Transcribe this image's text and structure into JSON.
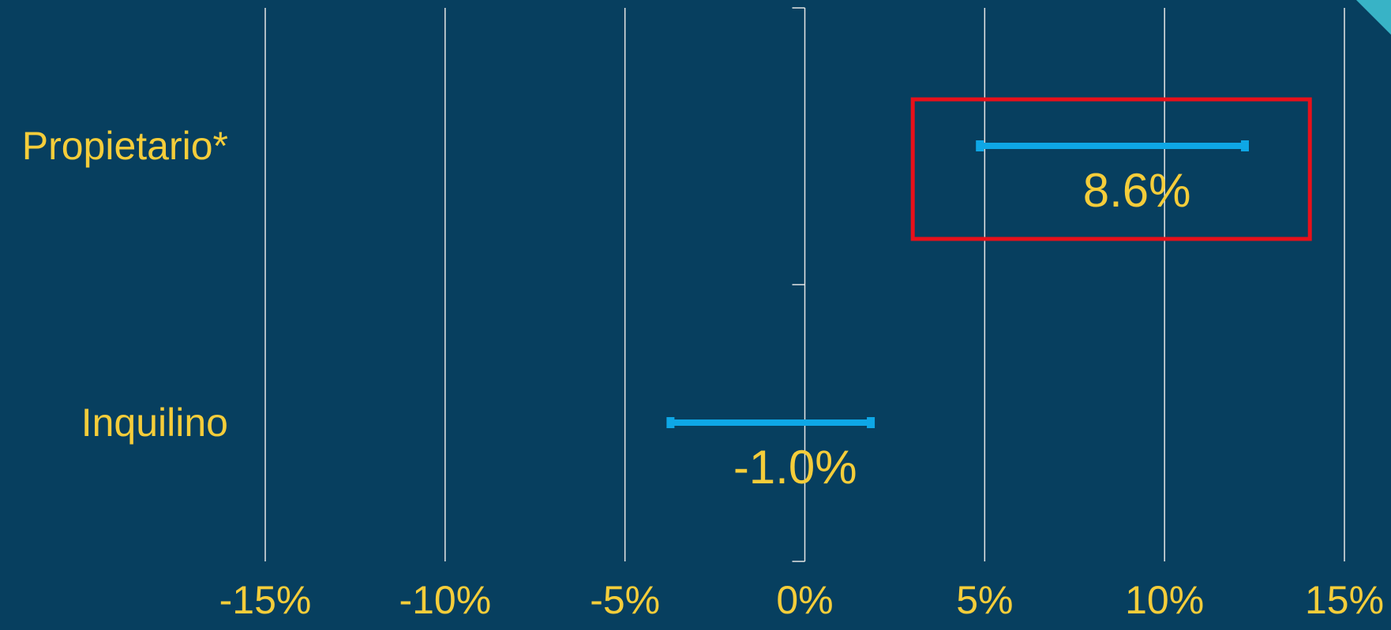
{
  "colors": {
    "background": "#073f5f",
    "gridline": "#e6e6e6",
    "text": "#f5cd3a",
    "interval": "#0ea7e6",
    "highlight_box": "#e8101a",
    "corner_accent": "#38b3c6"
  },
  "chart_data": {
    "type": "interval",
    "orientation": "horizontal",
    "title": "",
    "xlabel": "",
    "ylabel": "",
    "xlim": [
      -15,
      15
    ],
    "x_ticks": [
      -15,
      -10,
      -5,
      0,
      5,
      10,
      15
    ],
    "x_tick_labels": [
      "-15%",
      "-10%",
      "-5%",
      "0%",
      "5%",
      "10%",
      "15%"
    ],
    "grid": true,
    "categories": [
      "Propietario*",
      "Inquilino"
    ],
    "intervals": [
      {
        "category": "Propietario*",
        "low": 4.8,
        "high": 12.3,
        "estimate": 8.6,
        "label": "8.6%",
        "highlighted": true
      },
      {
        "category": "Inquilino",
        "low": -3.8,
        "high": 1.9,
        "estimate": -1.0,
        "label": "-1.0%",
        "highlighted": false
      }
    ]
  }
}
